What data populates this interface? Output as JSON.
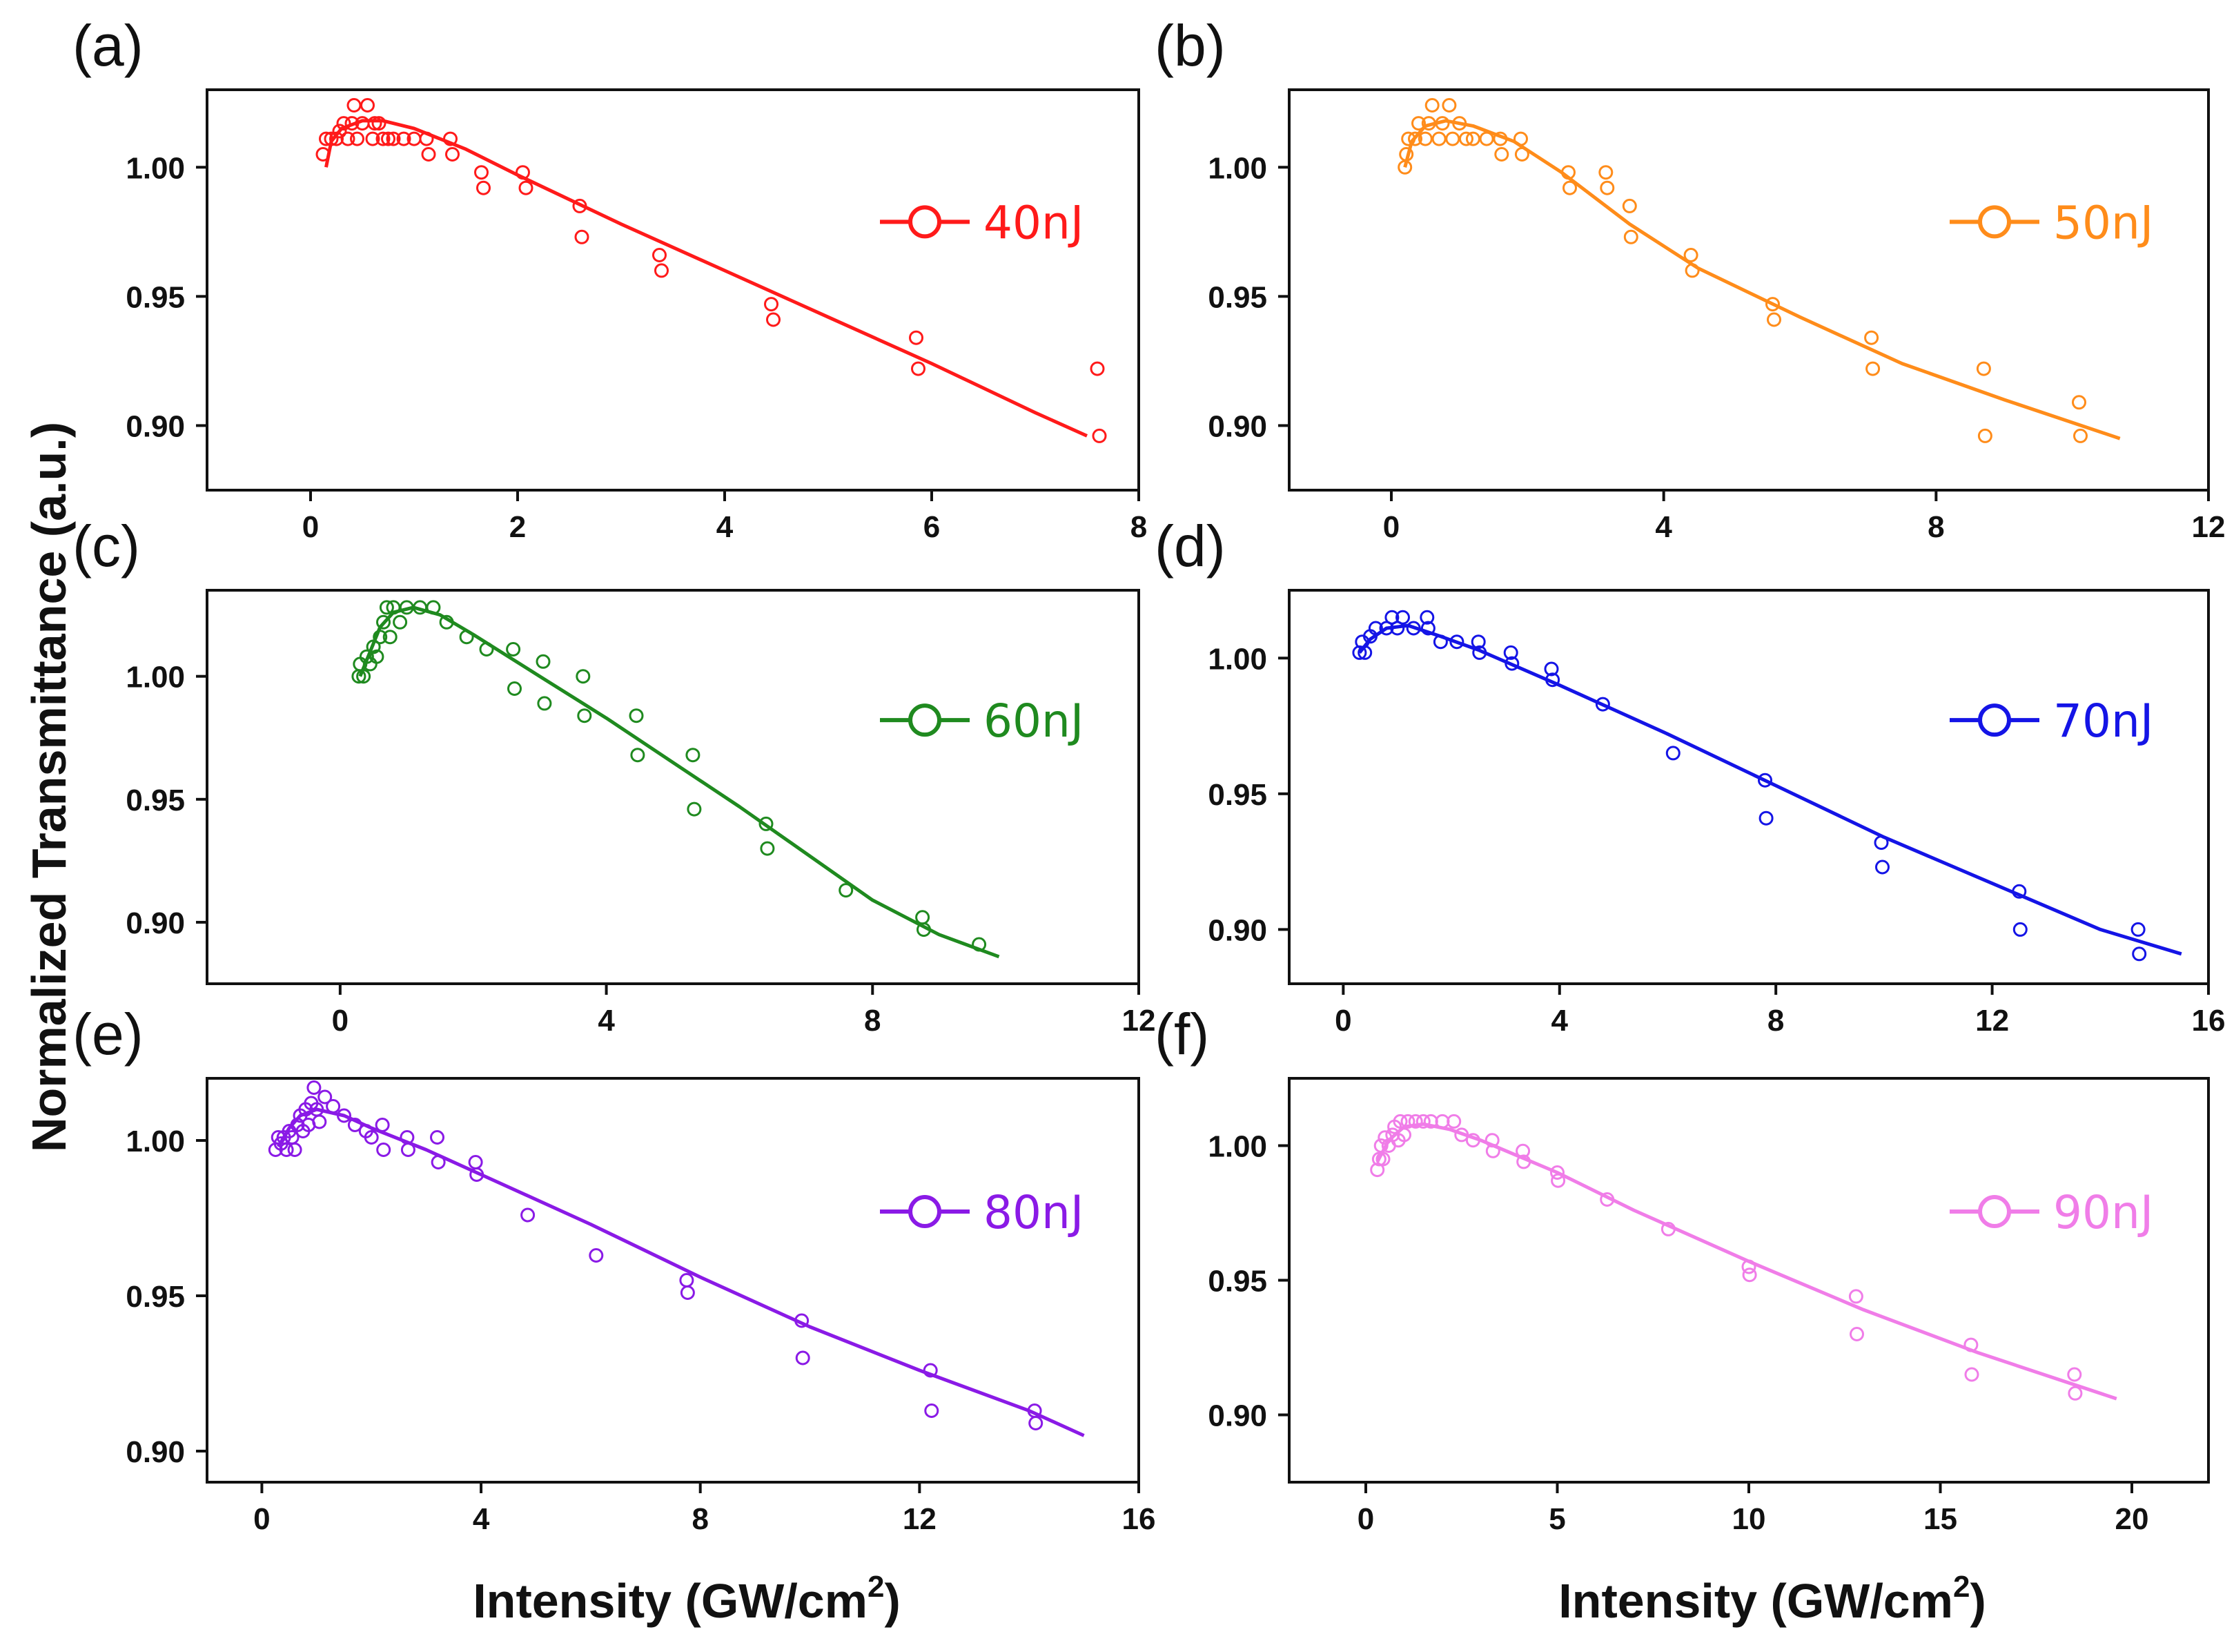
{
  "figure": {
    "ylabel": "Normalized Transmittance (a.u.)",
    "xlabel_main": "Intensity (GW/cm",
    "xlabel_sup": "2",
    "xlabel_end": ")"
  },
  "chart_data": [
    {
      "type": "scatter",
      "panel": "(a)",
      "legend": "40nJ",
      "color": "#ff1a1a",
      "xlim": [
        -1.0,
        8.0
      ],
      "ylim": [
        0.875,
        1.03
      ],
      "xticks": [
        0,
        2,
        4,
        6,
        8
      ],
      "xtick_labels": [
        "0",
        "2",
        "4",
        "6",
        "8"
      ],
      "yticks": [
        0.9,
        0.95,
        1.0
      ],
      "ytick_labels": [
        "0.90",
        "0.95",
        "1.00"
      ],
      "points": [
        [
          0.12,
          1.005
        ],
        [
          0.15,
          1.011
        ],
        [
          0.2,
          1.011
        ],
        [
          0.25,
          1.011
        ],
        [
          0.28,
          1.014
        ],
        [
          0.32,
          1.017
        ],
        [
          0.36,
          1.011
        ],
        [
          0.4,
          1.017
        ],
        [
          0.42,
          1.024
        ],
        [
          0.45,
          1.011
        ],
        [
          0.5,
          1.017
        ],
        [
          0.55,
          1.024
        ],
        [
          0.6,
          1.011
        ],
        [
          0.62,
          1.017
        ],
        [
          0.66,
          1.017
        ],
        [
          0.7,
          1.011
        ],
        [
          0.75,
          1.011
        ],
        [
          0.8,
          1.011
        ],
        [
          0.9,
          1.011
        ],
        [
          1.0,
          1.011
        ],
        [
          1.12,
          1.011
        ],
        [
          1.14,
          1.005
        ],
        [
          1.35,
          1.011
        ],
        [
          1.37,
          1.005
        ],
        [
          1.65,
          0.998
        ],
        [
          1.67,
          0.992
        ],
        [
          2.05,
          0.998
        ],
        [
          2.08,
          0.992
        ],
        [
          2.6,
          0.985
        ],
        [
          2.62,
          0.973
        ],
        [
          3.37,
          0.966
        ],
        [
          3.39,
          0.96
        ],
        [
          4.45,
          0.947
        ],
        [
          4.47,
          0.941
        ],
        [
          5.85,
          0.934
        ],
        [
          5.87,
          0.922
        ],
        [
          7.6,
          0.922
        ],
        [
          7.62,
          0.896
        ]
      ],
      "fit": [
        [
          0.15,
          1.0
        ],
        [
          0.2,
          1.01
        ],
        [
          0.3,
          1.015
        ],
        [
          0.5,
          1.018
        ],
        [
          0.7,
          1.018
        ],
        [
          1.0,
          1.015
        ],
        [
          1.5,
          1.007
        ],
        [
          2.0,
          0.997
        ],
        [
          3.0,
          0.978
        ],
        [
          4.0,
          0.96
        ],
        [
          5.0,
          0.942
        ],
        [
          6.0,
          0.924
        ],
        [
          7.0,
          0.905
        ],
        [
          7.5,
          0.896
        ]
      ]
    },
    {
      "type": "scatter",
      "panel": "(b)",
      "legend": "50nJ",
      "color": "#ff8c1a",
      "xlim": [
        -1.5,
        12.0
      ],
      "ylim": [
        0.875,
        1.03
      ],
      "xticks": [
        0,
        4,
        8,
        12
      ],
      "xtick_labels": [
        "0",
        "4",
        "8",
        "12"
      ],
      "yticks": [
        0.9,
        0.95,
        1.0
      ],
      "ytick_labels": [
        "0.90",
        "0.95",
        "1.00"
      ],
      "points": [
        [
          0.2,
          1.0
        ],
        [
          0.22,
          1.005
        ],
        [
          0.25,
          1.011
        ],
        [
          0.35,
          1.011
        ],
        [
          0.4,
          1.017
        ],
        [
          0.5,
          1.011
        ],
        [
          0.55,
          1.017
        ],
        [
          0.6,
          1.024
        ],
        [
          0.7,
          1.011
        ],
        [
          0.75,
          1.017
        ],
        [
          0.85,
          1.024
        ],
        [
          0.9,
          1.011
        ],
        [
          1.0,
          1.017
        ],
        [
          1.1,
          1.011
        ],
        [
          1.2,
          1.011
        ],
        [
          1.4,
          1.011
        ],
        [
          1.6,
          1.011
        ],
        [
          1.62,
          1.005
        ],
        [
          1.9,
          1.011
        ],
        [
          1.92,
          1.005
        ],
        [
          2.6,
          0.998
        ],
        [
          2.62,
          0.992
        ],
        [
          3.15,
          0.998
        ],
        [
          3.17,
          0.992
        ],
        [
          3.5,
          0.985
        ],
        [
          3.52,
          0.973
        ],
        [
          4.4,
          0.966
        ],
        [
          4.42,
          0.96
        ],
        [
          5.6,
          0.947
        ],
        [
          5.62,
          0.941
        ],
        [
          7.05,
          0.934
        ],
        [
          7.07,
          0.922
        ],
        [
          8.7,
          0.922
        ],
        [
          8.72,
          0.896
        ],
        [
          10.1,
          0.909
        ],
        [
          10.12,
          0.896
        ]
      ],
      "fit": [
        [
          0.2,
          1.0
        ],
        [
          0.3,
          1.01
        ],
        [
          0.5,
          1.016
        ],
        [
          0.8,
          1.018
        ],
        [
          1.2,
          1.016
        ],
        [
          1.8,
          1.01
        ],
        [
          2.5,
          0.998
        ],
        [
          3.5,
          0.978
        ],
        [
          4.5,
          0.961
        ],
        [
          6.0,
          0.942
        ],
        [
          7.5,
          0.924
        ],
        [
          9.0,
          0.91
        ],
        [
          10.7,
          0.895
        ]
      ]
    },
    {
      "type": "scatter",
      "panel": "(c)",
      "legend": "60nJ",
      "color": "#1f8a1f",
      "xlim": [
        -2.0,
        12.0
      ],
      "ylim": [
        0.875,
        1.035
      ],
      "xticks": [
        0,
        4,
        8,
        12
      ],
      "xtick_labels": [
        "0",
        "4",
        "8",
        "12"
      ],
      "yticks": [
        0.9,
        0.95,
        1.0
      ],
      "ytick_labels": [
        "0.90",
        "0.95",
        "1.00"
      ],
      "points": [
        [
          0.28,
          1.0
        ],
        [
          0.3,
          1.005
        ],
        [
          0.35,
          1.0
        ],
        [
          0.4,
          1.008
        ],
        [
          0.45,
          1.005
        ],
        [
          0.5,
          1.012
        ],
        [
          0.55,
          1.008
        ],
        [
          0.6,
          1.016
        ],
        [
          0.65,
          1.022
        ],
        [
          0.7,
          1.028
        ],
        [
          0.75,
          1.016
        ],
        [
          0.8,
          1.028
        ],
        [
          0.9,
          1.022
        ],
        [
          1.0,
          1.028
        ],
        [
          1.2,
          1.028
        ],
        [
          1.4,
          1.028
        ],
        [
          1.6,
          1.022
        ],
        [
          1.9,
          1.016
        ],
        [
          2.2,
          1.011
        ],
        [
          2.6,
          1.011
        ],
        [
          2.62,
          0.995
        ],
        [
          3.05,
          1.006
        ],
        [
          3.07,
          0.989
        ],
        [
          3.65,
          1.0
        ],
        [
          3.67,
          0.984
        ],
        [
          4.45,
          0.984
        ],
        [
          4.47,
          0.968
        ],
        [
          5.3,
          0.968
        ],
        [
          5.32,
          0.946
        ],
        [
          6.4,
          0.94
        ],
        [
          6.42,
          0.93
        ],
        [
          7.6,
          0.913
        ],
        [
          8.75,
          0.902
        ],
        [
          8.77,
          0.897
        ],
        [
          9.6,
          0.891
        ]
      ],
      "fit": [
        [
          0.3,
          1.0
        ],
        [
          0.45,
          1.01
        ],
        [
          0.6,
          1.02
        ],
        [
          0.8,
          1.026
        ],
        [
          1.1,
          1.028
        ],
        [
          1.5,
          1.025
        ],
        [
          2.0,
          1.017
        ],
        [
          3.0,
          1.0
        ],
        [
          4.0,
          0.983
        ],
        [
          5.0,
          0.965
        ],
        [
          6.0,
          0.947
        ],
        [
          7.0,
          0.928
        ],
        [
          8.0,
          0.909
        ],
        [
          9.0,
          0.895
        ],
        [
          9.9,
          0.886
        ]
      ]
    },
    {
      "type": "scatter",
      "panel": "(d)",
      "legend": "70nJ",
      "color": "#1414e6",
      "xlim": [
        -1.0,
        16.0
      ],
      "ylim": [
        0.88,
        1.025
      ],
      "xticks": [
        0,
        4,
        8,
        12,
        16
      ],
      "xtick_labels": [
        "0",
        "4",
        "8",
        "12",
        "16"
      ],
      "yticks": [
        0.9,
        0.95,
        1.0
      ],
      "ytick_labels": [
        "0.90",
        "0.95",
        "1.00"
      ],
      "points": [
        [
          0.3,
          1.002
        ],
        [
          0.35,
          1.006
        ],
        [
          0.4,
          1.002
        ],
        [
          0.5,
          1.008
        ],
        [
          0.6,
          1.011
        ],
        [
          0.8,
          1.011
        ],
        [
          0.9,
          1.015
        ],
        [
          1.0,
          1.011
        ],
        [
          1.1,
          1.015
        ],
        [
          1.3,
          1.011
        ],
        [
          1.55,
          1.015
        ],
        [
          1.57,
          1.011
        ],
        [
          1.8,
          1.006
        ],
        [
          2.1,
          1.006
        ],
        [
          2.5,
          1.006
        ],
        [
          2.52,
          1.002
        ],
        [
          3.1,
          1.002
        ],
        [
          3.12,
          0.998
        ],
        [
          3.85,
          0.996
        ],
        [
          3.87,
          0.992
        ],
        [
          4.8,
          0.983
        ],
        [
          6.1,
          0.965
        ],
        [
          7.8,
          0.955
        ],
        [
          7.82,
          0.941
        ],
        [
          9.95,
          0.932
        ],
        [
          9.97,
          0.923
        ],
        [
          12.5,
          0.914
        ],
        [
          12.52,
          0.9
        ],
        [
          14.7,
          0.9
        ],
        [
          14.72,
          0.891
        ]
      ],
      "fit": [
        [
          0.3,
          1.002
        ],
        [
          0.5,
          1.007
        ],
        [
          0.8,
          1.011
        ],
        [
          1.2,
          1.012
        ],
        [
          1.8,
          1.008
        ],
        [
          2.5,
          1.003
        ],
        [
          4.0,
          0.99
        ],
        [
          6.0,
          0.972
        ],
        [
          8.0,
          0.953
        ],
        [
          10.0,
          0.934
        ],
        [
          12.0,
          0.917
        ],
        [
          14.0,
          0.9
        ],
        [
          15.5,
          0.891
        ]
      ]
    },
    {
      "type": "scatter",
      "panel": "(e)",
      "legend": "80nJ",
      "color": "#8a1ae6",
      "xlim": [
        -1.0,
        16.0
      ],
      "ylim": [
        0.89,
        1.02
      ],
      "xticks": [
        0,
        4,
        8,
        12,
        16
      ],
      "xtick_labels": [
        "0",
        "4",
        "8",
        "12",
        "16"
      ],
      "yticks": [
        0.9,
        0.95,
        1.0
      ],
      "ytick_labels": [
        "0.90",
        "0.95",
        "1.00"
      ],
      "points": [
        [
          0.25,
          0.997
        ],
        [
          0.3,
          1.001
        ],
        [
          0.35,
          0.999
        ],
        [
          0.4,
          1.001
        ],
        [
          0.45,
          0.997
        ],
        [
          0.5,
          1.003
        ],
        [
          0.55,
          1.001
        ],
        [
          0.6,
          0.997
        ],
        [
          0.65,
          1.005
        ],
        [
          0.7,
          1.008
        ],
        [
          0.75,
          1.003
        ],
        [
          0.8,
          1.01
        ],
        [
          0.85,
          1.005
        ],
        [
          0.9,
          1.012
        ],
        [
          0.95,
          1.017
        ],
        [
          1.0,
          1.01
        ],
        [
          1.05,
          1.006
        ],
        [
          1.15,
          1.014
        ],
        [
          1.3,
          1.011
        ],
        [
          1.5,
          1.008
        ],
        [
          1.7,
          1.005
        ],
        [
          1.9,
          1.003
        ],
        [
          2.0,
          1.001
        ],
        [
          2.2,
          1.005
        ],
        [
          2.22,
          0.997
        ],
        [
          2.65,
          1.001
        ],
        [
          2.67,
          0.997
        ],
        [
          3.2,
          1.001
        ],
        [
          3.22,
          0.993
        ],
        [
          3.9,
          0.993
        ],
        [
          3.92,
          0.989
        ],
        [
          4.85,
          0.976
        ],
        [
          6.1,
          0.963
        ],
        [
          7.75,
          0.955
        ],
        [
          7.77,
          0.951
        ],
        [
          9.85,
          0.942
        ],
        [
          9.87,
          0.93
        ],
        [
          12.2,
          0.926
        ],
        [
          12.22,
          0.913
        ],
        [
          14.1,
          0.913
        ],
        [
          14.12,
          0.909
        ]
      ],
      "fit": [
        [
          0.3,
          0.998
        ],
        [
          0.5,
          1.004
        ],
        [
          0.7,
          1.008
        ],
        [
          1.0,
          1.01
        ],
        [
          1.5,
          1.008
        ],
        [
          2.0,
          1.004
        ],
        [
          3.0,
          0.997
        ],
        [
          4.0,
          0.989
        ],
        [
          6.0,
          0.973
        ],
        [
          8.0,
          0.956
        ],
        [
          10.0,
          0.94
        ],
        [
          12.0,
          0.926
        ],
        [
          14.0,
          0.913
        ],
        [
          15.0,
          0.905
        ]
      ]
    },
    {
      "type": "scatter",
      "panel": "(f)",
      "legend": "90nJ",
      "color": "#f07de8",
      "xlim": [
        -2.0,
        22.0
      ],
      "ylim": [
        0.875,
        1.025
      ],
      "xticks": [
        0,
        5,
        10,
        15,
        20
      ],
      "xtick_labels": [
        "0",
        "5",
        "10",
        "15",
        "20"
      ],
      "yticks": [
        0.9,
        0.95,
        1.0
      ],
      "ytick_labels": [
        "0.90",
        "0.95",
        "1.00"
      ],
      "points": [
        [
          0.3,
          0.991
        ],
        [
          0.35,
          0.995
        ],
        [
          0.4,
          1.0
        ],
        [
          0.45,
          0.995
        ],
        [
          0.5,
          1.003
        ],
        [
          0.6,
          1.0
        ],
        [
          0.7,
          1.004
        ],
        [
          0.75,
          1.007
        ],
        [
          0.85,
          1.002
        ],
        [
          0.9,
          1.009
        ],
        [
          1.0,
          1.004
        ],
        [
          1.1,
          1.009
        ],
        [
          1.3,
          1.009
        ],
        [
          1.5,
          1.009
        ],
        [
          1.7,
          1.009
        ],
        [
          2.0,
          1.009
        ],
        [
          2.3,
          1.009
        ],
        [
          2.5,
          1.004
        ],
        [
          2.8,
          1.002
        ],
        [
          3.3,
          1.002
        ],
        [
          3.32,
          0.998
        ],
        [
          4.1,
          0.998
        ],
        [
          4.12,
          0.994
        ],
        [
          5.0,
          0.99
        ],
        [
          5.02,
          0.987
        ],
        [
          6.3,
          0.98
        ],
        [
          7.9,
          0.969
        ],
        [
          10.0,
          0.955
        ],
        [
          10.02,
          0.952
        ],
        [
          12.8,
          0.944
        ],
        [
          12.82,
          0.93
        ],
        [
          15.8,
          0.926
        ],
        [
          15.82,
          0.915
        ],
        [
          18.5,
          0.915
        ],
        [
          18.52,
          0.908
        ]
      ],
      "fit": [
        [
          0.3,
          0.994
        ],
        [
          0.6,
          1.002
        ],
        [
          1.0,
          1.007
        ],
        [
          1.5,
          1.008
        ],
        [
          2.2,
          1.006
        ],
        [
          3.0,
          1.002
        ],
        [
          5.0,
          0.99
        ],
        [
          7.0,
          0.976
        ],
        [
          10.0,
          0.957
        ],
        [
          13.0,
          0.939
        ],
        [
          16.0,
          0.923
        ],
        [
          19.6,
          0.906
        ]
      ]
    }
  ]
}
